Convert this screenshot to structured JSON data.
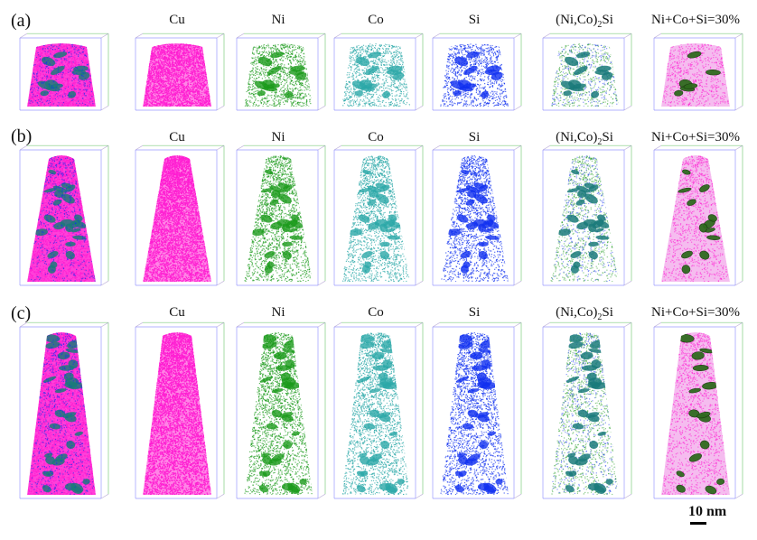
{
  "panels": [
    {
      "label": "(a)"
    },
    {
      "label": "(b)"
    },
    {
      "label": "(c)"
    }
  ],
  "columns": [
    {
      "label": "",
      "key": "all"
    },
    {
      "label": "Cu",
      "key": "cu"
    },
    {
      "label": "Ni",
      "key": "ni"
    },
    {
      "label": "Co",
      "key": "co"
    },
    {
      "label": "Si",
      "key": "si"
    },
    {
      "label_pre": "(Ni,Co)",
      "label_sub": "2",
      "label_post": "Si",
      "key": "phase"
    },
    {
      "label": "Ni+Co+Si=30%",
      "key": "iso"
    }
  ],
  "scale_bar": {
    "label": "10 nm"
  },
  "colors": {
    "cu": "#ff1fd2",
    "ni": "#1a9a1a",
    "co": "#2aa8a8",
    "si": "#1030f0",
    "phase": "#1a7a7a",
    "iso_fill": "#2f6a1e",
    "iso_bg": "#f2a6ea",
    "box_edges": [
      "#8080ff",
      "#60c060",
      "#b0a0d0"
    ]
  }
}
